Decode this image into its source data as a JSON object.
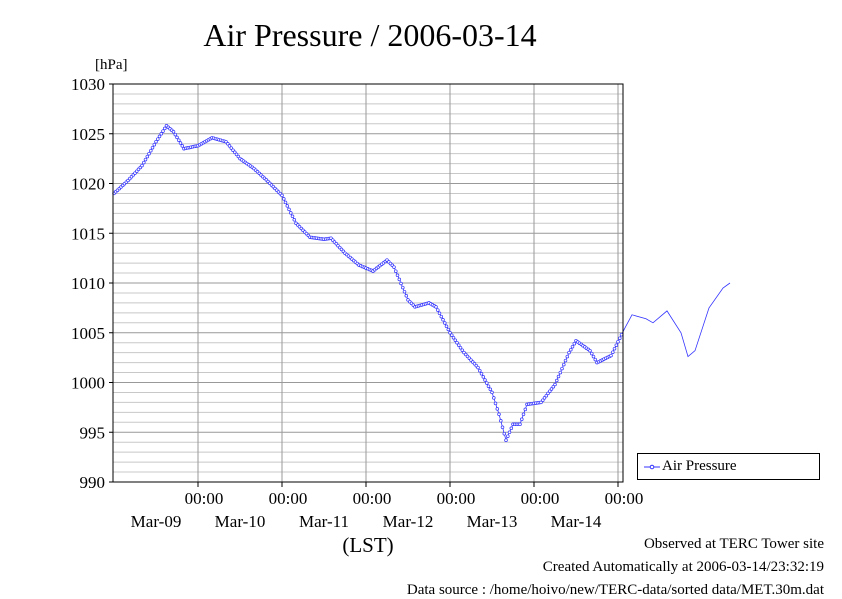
{
  "chart_data": {
    "type": "line",
    "title": "Air Pressure / 2006-03-14",
    "ylabel": "[hPa]",
    "xlabel": "(LST)",
    "ylim": [
      990,
      1030
    ],
    "yticks": [
      "1030",
      "1025",
      "1020",
      "1015",
      "1010",
      "1005",
      "1000",
      "995",
      "990"
    ],
    "xticks": [
      {
        "time": "00:00",
        "date": "Mar-09"
      },
      {
        "time": "00:00",
        "date": "Mar-10"
      },
      {
        "time": "00:00",
        "date": "Mar-11"
      },
      {
        "time": "00:00",
        "date": "Mar-12"
      },
      {
        "time": "00:00",
        "date": "Mar-13"
      },
      {
        "time": "00:00",
        "date": "Mar-14"
      }
    ],
    "grid": true,
    "legend_position": "right",
    "series": [
      {
        "name": "Air Pressure",
        "color": "#3333ff",
        "points": [
          [
            "2006-03-08 00:00",
            1019.0
          ],
          [
            "2006-03-08 04:00",
            1020.3
          ],
          [
            "2006-03-08 08:00",
            1021.8
          ],
          [
            "2006-03-08 12:00",
            1024.2
          ],
          [
            "2006-03-08 15:00",
            1025.8
          ],
          [
            "2006-03-08 17:00",
            1025.2
          ],
          [
            "2006-03-08 20:00",
            1023.5
          ],
          [
            "2006-03-09 00:00",
            1023.8
          ],
          [
            "2006-03-09 04:00",
            1024.6
          ],
          [
            "2006-03-09 08:00",
            1024.2
          ],
          [
            "2006-03-09 12:00",
            1022.5
          ],
          [
            "2006-03-09 16:00",
            1021.5
          ],
          [
            "2006-03-09 20:00",
            1020.2
          ],
          [
            "2006-03-10 00:00",
            1018.8
          ],
          [
            "2006-03-10 04:00",
            1016.0
          ],
          [
            "2006-03-10 08:00",
            1014.6
          ],
          [
            "2006-03-10 12:00",
            1014.4
          ],
          [
            "2006-03-10 14:00",
            1014.5
          ],
          [
            "2006-03-10 18:00",
            1013.0
          ],
          [
            "2006-03-10 22:00",
            1011.8
          ],
          [
            "2006-03-11 02:00",
            1011.2
          ],
          [
            "2006-03-11 06:00",
            1012.3
          ],
          [
            "2006-03-11 08:00",
            1011.6
          ],
          [
            "2006-03-11 12:00",
            1008.3
          ],
          [
            "2006-03-11 14:00",
            1007.6
          ],
          [
            "2006-03-11 18:00",
            1008.0
          ],
          [
            "2006-03-11 20:00",
            1007.6
          ],
          [
            "2006-03-12 00:00",
            1005.0
          ],
          [
            "2006-03-12 04:00",
            1003.0
          ],
          [
            "2006-03-12 08:00",
            1001.5
          ],
          [
            "2006-03-12 12:00",
            999.0
          ],
          [
            "2006-03-12 14:00",
            996.8
          ],
          [
            "2006-03-12 16:00",
            994.2
          ],
          [
            "2006-03-12 18:00",
            995.8
          ],
          [
            "2006-03-12 20:00",
            995.8
          ],
          [
            "2006-03-12 22:00",
            997.8
          ],
          [
            "2006-03-13 02:00",
            998.0
          ],
          [
            "2006-03-13 06:00",
            999.8
          ],
          [
            "2006-03-13 10:00",
            1003.0
          ],
          [
            "2006-03-13 12:00",
            1004.2
          ],
          [
            "2006-03-13 16:00",
            1003.2
          ],
          [
            "2006-03-13 18:00",
            1002.0
          ],
          [
            "2006-03-13 22:00",
            1002.7
          ],
          [
            "2006-03-14 02:00",
            1005.5
          ],
          [
            "2006-03-14 04:00",
            1006.8
          ],
          [
            "2006-03-14 08:00",
            1006.4
          ],
          [
            "2006-03-14 10:00",
            1006.0
          ],
          [
            "2006-03-14 14:00",
            1007.2
          ],
          [
            "2006-03-14 18:00",
            1005.0
          ],
          [
            "2006-03-14 20:00",
            1002.6
          ],
          [
            "2006-03-14 22:00",
            1003.2
          ],
          [
            "2006-03-15 02:00",
            1007.5
          ],
          [
            "2006-03-15 06:00",
            1009.5
          ],
          [
            "2006-03-15 08:00",
            1010.0
          ]
        ]
      }
    ]
  },
  "footer": {
    "observed": "Observed at TERC Tower site",
    "created": "Created Automatically at 2006-03-14/23:32:19",
    "source": "Data source : /home/hoivo/new/TERC-data/sorted  data/MET.30m.dat"
  }
}
